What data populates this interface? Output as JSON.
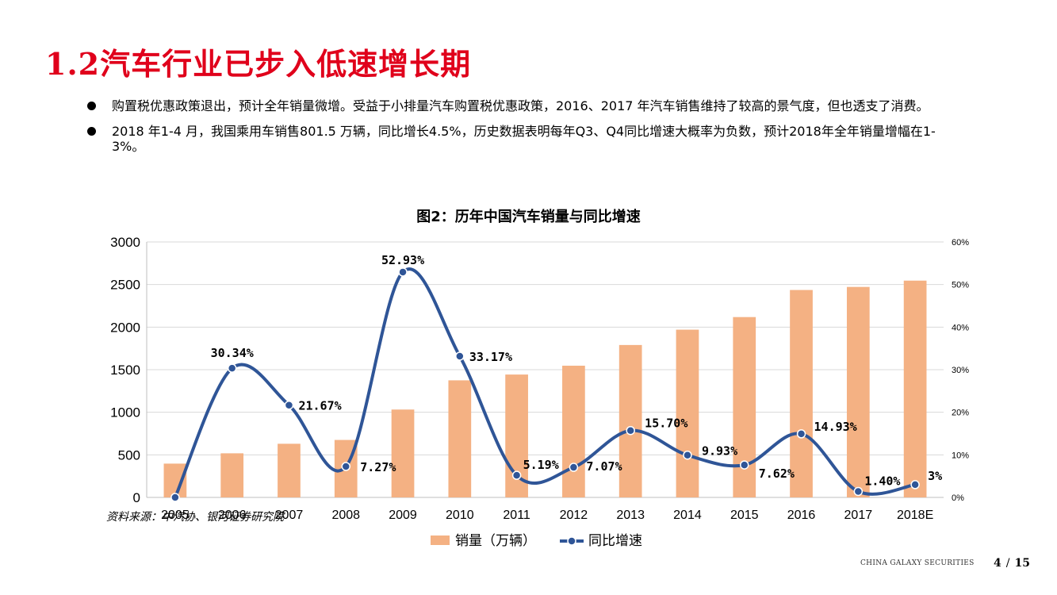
{
  "slide": {
    "title": "1.2汽车行业已步入低速增长期",
    "bullets": [
      "购置税优惠政策退出，预计全年销量微增。受益于小排量汽车购置税优惠政策，2016、2017 年汽车销售维持了较高的景气度，但也透支了消费。",
      "2018 年1-4 月，我国乘用车销售801.5 万辆，同比增长4.5%，历史数据表明每年Q3、Q4同比增速大概率为负数，预计2018年全年销量增幅在1-3%。"
    ],
    "source": "资料来源：中汽协、银河证券研究院",
    "footer_brand": "CHINA GALAXY SECURITIES",
    "page_current": "4",
    "page_sep": "/",
    "page_total": "15"
  },
  "colors": {
    "title_red": "#e0001b",
    "bar": "#f4b183",
    "line": "#2f5597",
    "grid": "#d9d9d9"
  },
  "chart_data": {
    "type": "bar+line",
    "title": "图2：历年中国汽车销量与同比增速",
    "categories": [
      "2005",
      "2006",
      "2007",
      "2008",
      "2009",
      "2010",
      "2011",
      "2012",
      "2013",
      "2014",
      "2015",
      "2016",
      "2017",
      "2018E"
    ],
    "series": [
      {
        "name": "销量（万辆）",
        "type": "bar",
        "axis": "left",
        "values": [
          397,
          518,
          630,
          675,
          1032,
          1375,
          1443,
          1547,
          1790,
          1970,
          2118,
          2436,
          2472,
          2546
        ]
      },
      {
        "name": "同比增速",
        "type": "line",
        "axis": "right",
        "values": [
          0,
          30.34,
          21.67,
          7.27,
          52.93,
          33.17,
          5.19,
          7.07,
          15.7,
          9.93,
          7.62,
          14.93,
          1.4,
          3
        ],
        "labels": [
          "",
          "30.34%",
          "21.67%",
          "7.27%",
          "52.93%",
          "33.17%",
          "5.19%",
          "7.07%",
          "15.70%",
          "9.93%",
          "7.62%",
          "14.93%",
          "1.40%",
          "3%"
        ]
      }
    ],
    "y_left": {
      "min": 0,
      "max": 3000,
      "ticks": [
        "0",
        "500",
        "1000",
        "1500",
        "2000",
        "2500",
        "3000"
      ]
    },
    "y_right": {
      "min": 0,
      "max": 60,
      "ticks": [
        "0%",
        "10%",
        "20%",
        "30%",
        "40%",
        "50%",
        "60%"
      ]
    },
    "grid": true,
    "legend_position": "bottom"
  }
}
